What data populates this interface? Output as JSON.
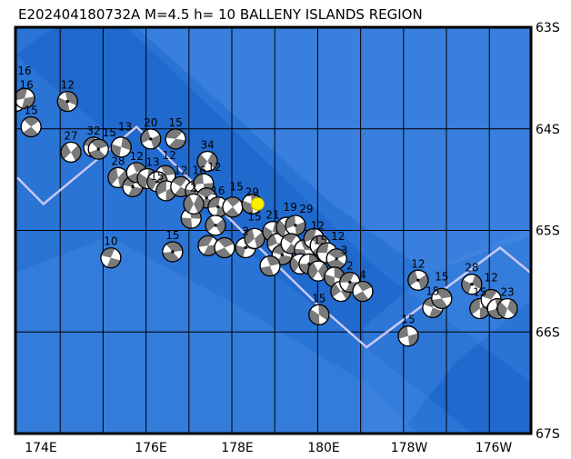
{
  "title": "E202404180732A M=4.5 h= 10 BALLENY ISLANDS REGION",
  "map": {
    "lon_range_east": [
      172.9,
      184.9
    ],
    "lat_range_south": [
      63,
      67
    ],
    "lat_labels": [
      "63S",
      "64S",
      "65S",
      "66S",
      "67S"
    ],
    "lon_labels": [
      "174E",
      "176E",
      "178E",
      "180E",
      "178W",
      "176W"
    ],
    "colors": {
      "ocean": "#2a74d6",
      "ocean_light": "#4b8fe6",
      "ocean_dark": "#1a62c6",
      "plate_boundary": "#c9c8f2",
      "compressional": "#7a7a7a",
      "target_event": "#ffee00"
    },
    "target_event": {
      "lon": 178.6,
      "lat": 64.74,
      "label": "29"
    },
    "plate_boundary": [
      [
        173.0,
        64.48
      ],
      [
        173.61,
        64.74
      ],
      [
        175.78,
        63.98
      ],
      [
        178.15,
        64.97
      ],
      [
        179.95,
        65.71
      ],
      [
        181.14,
        66.15
      ],
      [
        184.25,
        65.17
      ],
      [
        184.97,
        65.42
      ]
    ],
    "events": [
      {
        "lon": 172.96,
        "lat": 63.73,
        "label": "16"
      },
      {
        "lon": 173.17,
        "lat": 63.7,
        "label": "16"
      },
      {
        "lon": 173.32,
        "lat": 63.98,
        "label": "15"
      },
      {
        "lon": 174.17,
        "lat": 63.73,
        "label": "12"
      },
      {
        "lon": 174.25,
        "lat": 64.23,
        "label": "27"
      },
      {
        "lon": 174.78,
        "lat": 64.18,
        "label": "32"
      },
      {
        "lon": 174.89,
        "lat": 64.2,
        "label": "15"
      },
      {
        "lon": 175.42,
        "lat": 64.18,
        "label": "13"
      },
      {
        "lon": 175.35,
        "lat": 64.48,
        "label": "28"
      },
      {
        "lon": 175.69,
        "lat": 64.57,
        "label": ""
      },
      {
        "lon": 175.78,
        "lat": 64.43,
        "label": "12"
      },
      {
        "lon": 176.03,
        "lat": 64.49,
        "label": "13"
      },
      {
        "lon": 176.11,
        "lat": 64.1,
        "label": "20"
      },
      {
        "lon": 176.69,
        "lat": 64.1,
        "label": "15"
      },
      {
        "lon": 176.45,
        "lat": 64.46,
        "label": "12"
      },
      {
        "lon": 176.26,
        "lat": 64.52,
        "label": "15"
      },
      {
        "lon": 176.47,
        "lat": 64.61,
        "label": ""
      },
      {
        "lon": 176.81,
        "lat": 64.57,
        "label": "12"
      },
      {
        "lon": 177.15,
        "lat": 64.61,
        "label": "16"
      },
      {
        "lon": 177.43,
        "lat": 64.32,
        "label": "34"
      },
      {
        "lon": 177.34,
        "lat": 64.54,
        "label": "12"
      },
      {
        "lon": 177.41,
        "lat": 64.68,
        "label": ""
      },
      {
        "lon": 177.05,
        "lat": 64.88,
        "label": ""
      },
      {
        "lon": 177.11,
        "lat": 64.74,
        "label": "2"
      },
      {
        "lon": 177.68,
        "lat": 64.77,
        "label": "16"
      },
      {
        "lon": 178.02,
        "lat": 64.77,
        "label": "15"
      },
      {
        "lon": 178.47,
        "lat": 64.74,
        "label": ""
      },
      {
        "lon": 177.62,
        "lat": 64.95,
        "label": ""
      },
      {
        "lon": 177.45,
        "lat": 65.15,
        "label": ""
      },
      {
        "lon": 177.83,
        "lat": 65.17,
        "label": ""
      },
      {
        "lon": 178.32,
        "lat": 65.17,
        "label": "2"
      },
      {
        "lon": 178.53,
        "lat": 65.08,
        "label": "15"
      },
      {
        "lon": 175.18,
        "lat": 65.27,
        "label": "10"
      },
      {
        "lon": 176.62,
        "lat": 65.21,
        "label": "15"
      },
      {
        "lon": 178.95,
        "lat": 65.01,
        "label": "21"
      },
      {
        "lon": 179.06,
        "lat": 65.13,
        "label": ""
      },
      {
        "lon": 179.17,
        "lat": 65.24,
        "label": ""
      },
      {
        "lon": 178.89,
        "lat": 65.35,
        "label": ""
      },
      {
        "lon": 179.27,
        "lat": 64.97,
        "label": "19"
      },
      {
        "lon": 179.48,
        "lat": 64.95,
        "label": "29"
      },
      {
        "lon": 179.38,
        "lat": 65.13,
        "label": ""
      },
      {
        "lon": 179.69,
        "lat": 65.19,
        "label": ""
      },
      {
        "lon": 179.59,
        "lat": 65.33,
        "label": ""
      },
      {
        "lon": 179.91,
        "lat": 65.08,
        "label": "12"
      },
      {
        "lon": 180.06,
        "lat": 65.15,
        "label": "15"
      },
      {
        "lon": 179.8,
        "lat": 65.33,
        "label": ""
      },
      {
        "lon": 180.01,
        "lat": 65.4,
        "label": ""
      },
      {
        "lon": 180.22,
        "lat": 65.22,
        "label": "12"
      },
      {
        "lon": 180.44,
        "lat": 65.28,
        "label": "3"
      },
      {
        "lon": 180.39,
        "lat": 65.46,
        "label": ""
      },
      {
        "lon": 180.54,
        "lat": 65.6,
        "label": ""
      },
      {
        "lon": 180.75,
        "lat": 65.51,
        "label": "2"
      },
      {
        "lon": 181.05,
        "lat": 65.6,
        "label": "4"
      },
      {
        "lon": 180.03,
        "lat": 65.83,
        "label": "15"
      },
      {
        "lon": 182.34,
        "lat": 65.49,
        "label": "12"
      },
      {
        "lon": 182.68,
        "lat": 65.76,
        "label": "15"
      },
      {
        "lon": 182.89,
        "lat": 65.67,
        "label": "15"
      },
      {
        "lon": 183.59,
        "lat": 65.53,
        "label": "28"
      },
      {
        "lon": 183.78,
        "lat": 65.77,
        "label": "15"
      },
      {
        "lon": 184.04,
        "lat": 65.68,
        "label": "12"
      },
      {
        "lon": 184.19,
        "lat": 65.77,
        "label": ""
      },
      {
        "lon": 184.42,
        "lat": 65.77,
        "label": "23"
      },
      {
        "lon": 182.11,
        "lat": 66.04,
        "label": "15"
      }
    ]
  }
}
